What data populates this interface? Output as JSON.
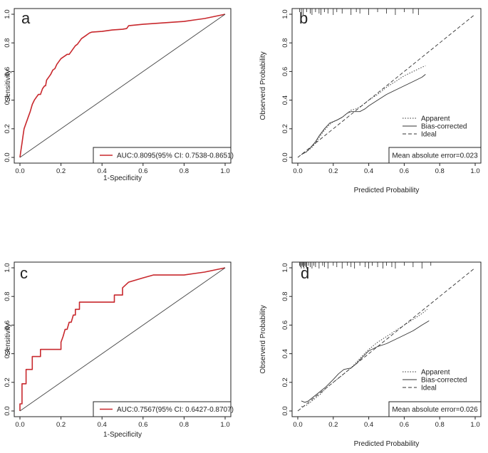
{
  "chart_data": [
    {
      "type": "line",
      "panel": "a",
      "title": "",
      "xlabel": "1-Specificity",
      "ylabel": "Sensitivity",
      "xlim": [
        0,
        1
      ],
      "ylim": [
        0,
        1
      ],
      "xticks": [
        0.0,
        0.2,
        0.4,
        0.6,
        0.8,
        1.0
      ],
      "yticks": [
        0.0,
        0.2,
        0.4,
        0.6,
        0.8,
        1.0
      ],
      "series": [
        {
          "name": "ROC",
          "color": "#c8282d",
          "style": "solid",
          "x": [
            0,
            0.005,
            0.01,
            0.015,
            0.02,
            0.03,
            0.035,
            0.04,
            0.05,
            0.06,
            0.07,
            0.08,
            0.09,
            0.1,
            0.11,
            0.12,
            0.125,
            0.13,
            0.14,
            0.15,
            0.16,
            0.17,
            0.18,
            0.19,
            0.2,
            0.21,
            0.22,
            0.23,
            0.24,
            0.25,
            0.26,
            0.27,
            0.28,
            0.29,
            0.3,
            0.31,
            0.32,
            0.33,
            0.34,
            0.35,
            0.4,
            0.45,
            0.5,
            0.52,
            0.53,
            0.6,
            0.65,
            0.7,
            0.75,
            0.8,
            0.85,
            0.9,
            0.95,
            1.0
          ],
          "y": [
            0,
            0.05,
            0.1,
            0.15,
            0.2,
            0.24,
            0.26,
            0.28,
            0.32,
            0.37,
            0.4,
            0.42,
            0.44,
            0.44,
            0.48,
            0.5,
            0.5,
            0.54,
            0.56,
            0.58,
            0.61,
            0.62,
            0.65,
            0.67,
            0.69,
            0.7,
            0.71,
            0.72,
            0.72,
            0.74,
            0.76,
            0.78,
            0.79,
            0.81,
            0.83,
            0.84,
            0.85,
            0.86,
            0.87,
            0.875,
            0.88,
            0.89,
            0.895,
            0.9,
            0.92,
            0.93,
            0.935,
            0.94,
            0.945,
            0.95,
            0.96,
            0.97,
            0.985,
            1.0
          ]
        },
        {
          "name": "reference",
          "color": "#444444",
          "style": "solid",
          "x": [
            0,
            1
          ],
          "y": [
            0,
            1
          ]
        }
      ],
      "legend": {
        "position": "bottom-right",
        "entries": [
          {
            "label": "AUC:0.8095(95% CI: 0.7538-0.8651)",
            "color": "#c8282d",
            "style": "solid"
          }
        ]
      }
    },
    {
      "type": "line",
      "panel": "b",
      "title": "",
      "xlabel": "Predicted Probability",
      "ylabel": "Observerd Probability",
      "xlim": [
        0,
        1
      ],
      "ylim": [
        0,
        1
      ],
      "xticks": [
        0.0,
        0.2,
        0.4,
        0.6,
        0.8,
        1.0
      ],
      "yticks": [
        0.0,
        0.2,
        0.4,
        0.6,
        0.8,
        1.0
      ],
      "rug": [
        0.01,
        0.02,
        0.03,
        0.05,
        0.07,
        0.08,
        0.1,
        0.12,
        0.13,
        0.15,
        0.17,
        0.2,
        0.22,
        0.25,
        0.3,
        0.33,
        0.35,
        0.4,
        0.45,
        0.5,
        0.55,
        0.6,
        0.65,
        0.68
      ],
      "series": [
        {
          "name": "Apparent",
          "color": "#333333",
          "style": "dotted",
          "x": [
            0.02,
            0.05,
            0.08,
            0.1,
            0.12,
            0.15,
            0.18,
            0.2,
            0.22,
            0.25,
            0.28,
            0.3,
            0.33,
            0.36,
            0.4,
            0.45,
            0.5,
            0.55,
            0.6,
            0.65,
            0.7,
            0.72
          ],
          "y": [
            0.02,
            0.04,
            0.07,
            0.1,
            0.14,
            0.19,
            0.23,
            0.25,
            0.26,
            0.28,
            0.31,
            0.33,
            0.34,
            0.36,
            0.4,
            0.44,
            0.49,
            0.53,
            0.57,
            0.6,
            0.63,
            0.64
          ]
        },
        {
          "name": "Bias-corrected",
          "color": "#333333",
          "style": "solid",
          "x": [
            0.02,
            0.05,
            0.08,
            0.1,
            0.12,
            0.15,
            0.18,
            0.2,
            0.22,
            0.25,
            0.28,
            0.3,
            0.33,
            0.35,
            0.38,
            0.4,
            0.45,
            0.5,
            0.55,
            0.6,
            0.65,
            0.7,
            0.72
          ],
          "y": [
            0.02,
            0.04,
            0.08,
            0.11,
            0.15,
            0.2,
            0.24,
            0.25,
            0.26,
            0.28,
            0.31,
            0.32,
            0.32,
            0.32,
            0.34,
            0.36,
            0.4,
            0.44,
            0.47,
            0.5,
            0.53,
            0.56,
            0.58
          ]
        },
        {
          "name": "Ideal",
          "color": "#333333",
          "style": "dashed",
          "x": [
            0,
            1
          ],
          "y": [
            0,
            1
          ]
        }
      ],
      "legend": {
        "position": "right",
        "entries": [
          {
            "label": "Apparent",
            "style": "dotted"
          },
          {
            "label": "Bias-corrected",
            "style": "solid"
          },
          {
            "label": "Ideal",
            "style": "dashed"
          }
        ]
      },
      "annotation": "Mean absolute error=0.023"
    },
    {
      "type": "line",
      "panel": "c",
      "title": "",
      "xlabel": "1-Specificity",
      "ylabel": "Sensitivity",
      "xlim": [
        0,
        1
      ],
      "ylim": [
        0,
        1
      ],
      "xticks": [
        0.0,
        0.2,
        0.4,
        0.6,
        0.8,
        1.0
      ],
      "yticks": [
        0.0,
        0.2,
        0.4,
        0.6,
        0.8,
        1.0
      ],
      "series": [
        {
          "name": "ROC",
          "color": "#c8282d",
          "style": "solid",
          "x": [
            0,
            0,
            0.01,
            0.01,
            0.03,
            0.03,
            0.06,
            0.06,
            0.1,
            0.1,
            0.13,
            0.13,
            0.2,
            0.2,
            0.21,
            0.22,
            0.23,
            0.24,
            0.25,
            0.26,
            0.27,
            0.27,
            0.28,
            0.29,
            0.29,
            0.3,
            0.46,
            0.46,
            0.47,
            0.5,
            0.5,
            0.53,
            0.6,
            0.65,
            0.7,
            0.8,
            0.85,
            0.9,
            0.95,
            1.0
          ],
          "y": [
            0,
            0.05,
            0.05,
            0.19,
            0.19,
            0.29,
            0.29,
            0.38,
            0.38,
            0.43,
            0.43,
            0.43,
            0.43,
            0.48,
            0.52,
            0.57,
            0.57,
            0.62,
            0.62,
            0.67,
            0.67,
            0.71,
            0.71,
            0.71,
            0.76,
            0.76,
            0.76,
            0.81,
            0.81,
            0.81,
            0.86,
            0.9,
            0.93,
            0.95,
            0.95,
            0.95,
            0.96,
            0.97,
            0.985,
            1.0
          ]
        },
        {
          "name": "reference",
          "color": "#444444",
          "style": "solid",
          "x": [
            0,
            1
          ],
          "y": [
            0,
            1
          ]
        }
      ],
      "legend": {
        "position": "bottom-right",
        "entries": [
          {
            "label": "AUC:0.7567(95% CI: 0.6427-0.8707)",
            "color": "#c8282d",
            "style": "solid"
          }
        ]
      }
    },
    {
      "type": "line",
      "panel": "d",
      "title": "",
      "xlabel": "Predicted Probability",
      "ylabel": "Observerd Probability",
      "xlim": [
        0,
        1
      ],
      "ylim": [
        0,
        1
      ],
      "xticks": [
        0.0,
        0.2,
        0.4,
        0.6,
        0.8,
        1.0
      ],
      "yticks": [
        0.0,
        0.2,
        0.4,
        0.6,
        0.8,
        1.0
      ],
      "rug": [
        0.01,
        0.015,
        0.02,
        0.025,
        0.03,
        0.035,
        0.04,
        0.045,
        0.05,
        0.06,
        0.07,
        0.08,
        0.09,
        0.1,
        0.12,
        0.14,
        0.15,
        0.17,
        0.2,
        0.22,
        0.25,
        0.28,
        0.3,
        0.32,
        0.35,
        0.38,
        0.4,
        0.42,
        0.45,
        0.48,
        0.5,
        0.53,
        0.55,
        0.6,
        0.65,
        0.7,
        0.75
      ],
      "series": [
        {
          "name": "Apparent",
          "color": "#333333",
          "style": "dotted",
          "x": [
            0.02,
            0.05,
            0.08,
            0.1,
            0.13,
            0.16,
            0.2,
            0.24,
            0.27,
            0.3,
            0.33,
            0.36,
            0.4,
            0.45,
            0.5,
            0.55,
            0.6,
            0.65,
            0.7,
            0.73
          ],
          "y": [
            0.03,
            0.04,
            0.07,
            0.09,
            0.12,
            0.16,
            0.2,
            0.24,
            0.27,
            0.3,
            0.34,
            0.38,
            0.43,
            0.48,
            0.52,
            0.56,
            0.6,
            0.64,
            0.68,
            0.71
          ]
        },
        {
          "name": "Bias-corrected",
          "color": "#333333",
          "style": "solid",
          "x": [
            0.02,
            0.04,
            0.06,
            0.08,
            0.1,
            0.13,
            0.16,
            0.2,
            0.23,
            0.26,
            0.3,
            0.33,
            0.36,
            0.4,
            0.45,
            0.5,
            0.55,
            0.6,
            0.65,
            0.7,
            0.74
          ],
          "y": [
            0.07,
            0.06,
            0.07,
            0.09,
            0.11,
            0.14,
            0.17,
            0.22,
            0.26,
            0.29,
            0.3,
            0.33,
            0.37,
            0.42,
            0.45,
            0.47,
            0.5,
            0.53,
            0.56,
            0.6,
            0.63
          ]
        },
        {
          "name": "Ideal",
          "color": "#333333",
          "style": "dashed",
          "x": [
            0,
            1
          ],
          "y": [
            0,
            1
          ]
        }
      ],
      "legend": {
        "position": "right",
        "entries": [
          {
            "label": "Apparent",
            "style": "dotted"
          },
          {
            "label": "Bias-corrected",
            "style": "solid"
          },
          {
            "label": "Ideal",
            "style": "dashed"
          }
        ]
      },
      "annotation": "Mean absolute error=0.026"
    }
  ]
}
